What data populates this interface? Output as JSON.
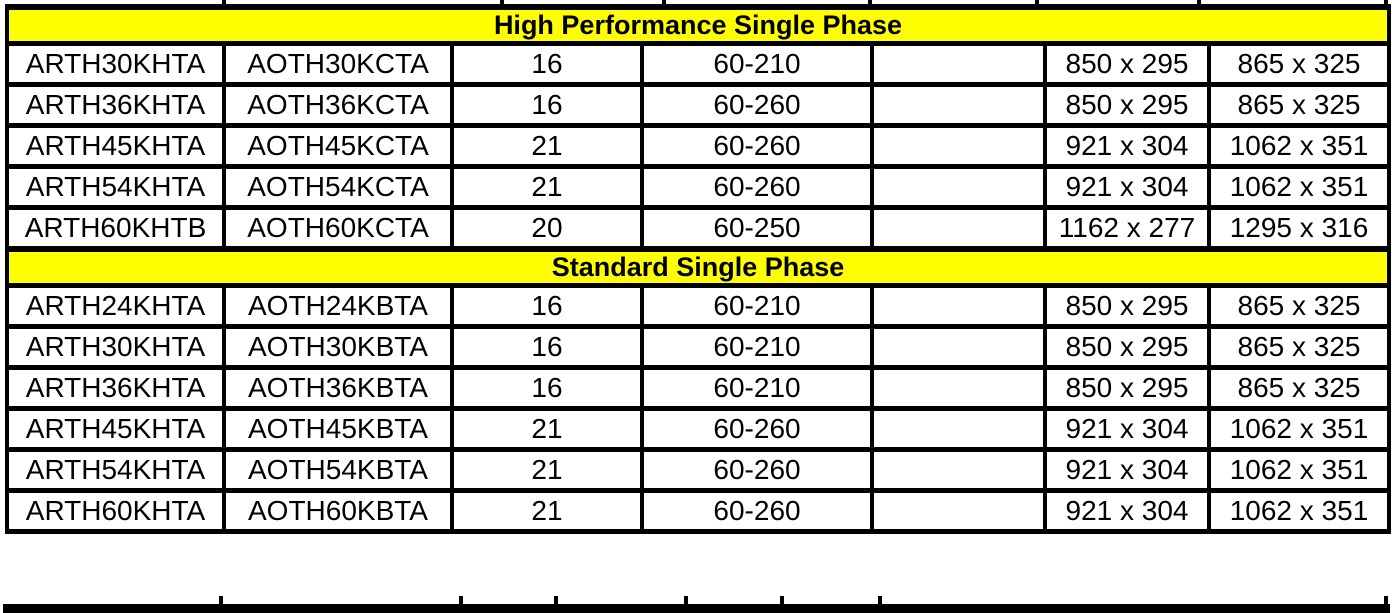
{
  "table": {
    "colors": {
      "section_header_bg": "#FFFF00",
      "border": "#000000",
      "row_bg": "#FFFFFF",
      "text": "#000000"
    },
    "sections": [
      {
        "header": "High Performance Single Phase",
        "rows": [
          [
            "ARTH30KHTA",
            "AOTH30KCTA",
            "16",
            "60-210",
            "",
            "850 x 295",
            "865 x 325"
          ],
          [
            "ARTH36KHTA",
            "AOTH36KCTA",
            "16",
            "60-260",
            "",
            "850 x 295",
            "865 x 325"
          ],
          [
            "ARTH45KHTA",
            "AOTH45KCTA",
            "21",
            "60-260",
            "",
            "921 x 304",
            "1062 x 351"
          ],
          [
            "ARTH54KHTA",
            "AOTH54KCTA",
            "21",
            "60-260",
            "",
            "921 x 304",
            "1062 x 351"
          ],
          [
            "ARTH60KHTB",
            "AOTH60KCTA",
            "20",
            "60-250",
            "",
            "1162 x 277",
            "1295 x 316"
          ]
        ]
      },
      {
        "header": "Standard Single Phase",
        "rows": [
          [
            "ARTH24KHTA",
            "AOTH24KBTA",
            "16",
            "60-210",
            "",
            "850 x 295",
            "865 x 325"
          ],
          [
            "ARTH30KHTA",
            "AOTH30KBTA",
            "16",
            "60-210",
            "",
            "850 x 295",
            "865 x 325"
          ],
          [
            "ARTH36KHTA",
            "AOTH36KBTA",
            "16",
            "60-210",
            "",
            "850 x 295",
            "865 x 325"
          ],
          [
            "ARTH45KHTA",
            "AOTH45KBTA",
            "21",
            "60-260",
            "",
            "921 x 304",
            "1062 x 351"
          ],
          [
            "ARTH54KHTA",
            "AOTH54KBTA",
            "21",
            "60-260",
            "",
            "921 x 304",
            "1062 x 351"
          ],
          [
            "ARTH60KHTA",
            "AOTH60KBTA",
            "21",
            "60-260",
            "",
            "921 x 304",
            "1062 x 351"
          ]
        ]
      }
    ]
  }
}
